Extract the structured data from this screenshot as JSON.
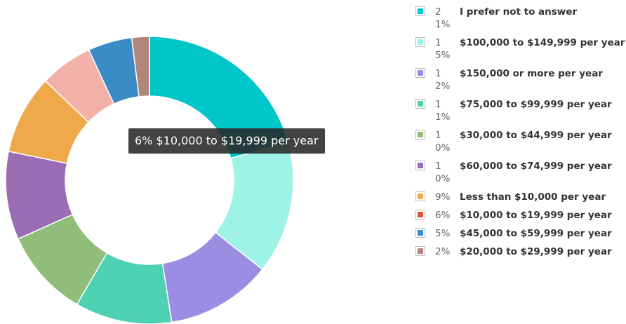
{
  "chart_data": {
    "type": "donut",
    "categories": [
      "I prefer not to answer",
      "$100,000 to $149,999 per year",
      "$150,000 or more per year",
      "$75,000 to $99,999 per year",
      "$30,000 to $44,999 per year",
      "$60,000 to $74,999 per year",
      "Less than $10,000 per year",
      "$10,000 to $19,999 per year",
      "$45,000 to $59,999 per year",
      "$20,000 to $29,999 per year"
    ],
    "values": [
      21,
      15,
      12,
      11,
      10,
      10,
      9,
      6,
      5,
      2
    ],
    "value_labels": [
      "21%",
      "15%",
      "12%",
      "11%",
      "10%",
      "10%",
      "9%",
      "6%",
      "5%",
      "2%"
    ],
    "colors": [
      "#00c5c9",
      "#9ef2e8",
      "#9b8de3",
      "#4fd1b3",
      "#90bd7a",
      "#9a6cb3",
      "#f0a94a",
      "#e0533d",
      "#3b8bc6",
      "#b0877a"
    ],
    "legend": "right",
    "highlighted": 7
  }
}
